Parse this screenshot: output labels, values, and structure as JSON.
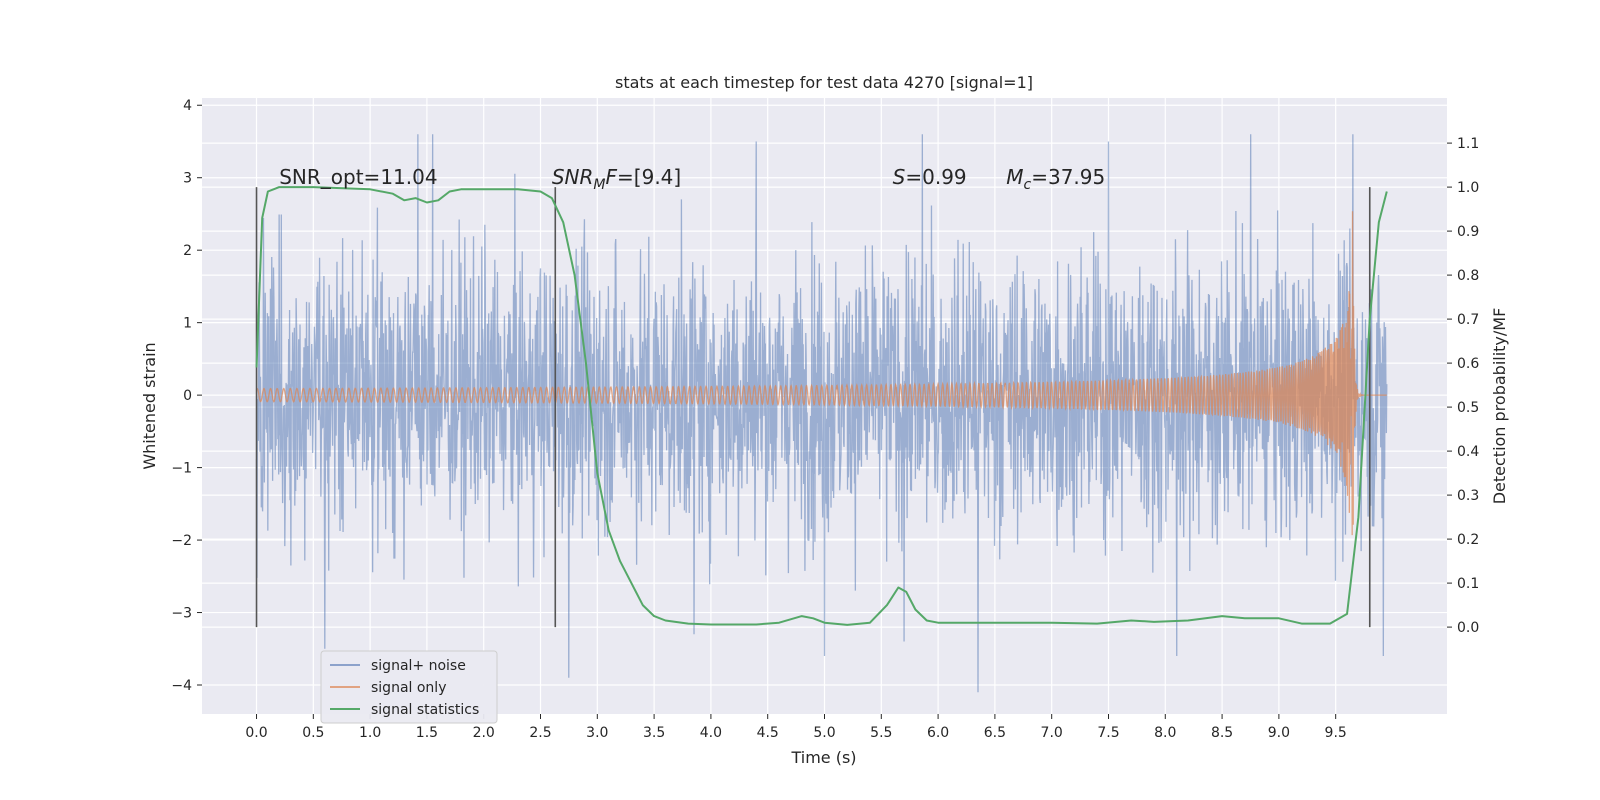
{
  "chart_data": {
    "type": "line",
    "title": "stats at each timestep for test data 4270 [signal=1]",
    "xlabel": "Time (s)",
    "ylabel": "Whitened strain",
    "y2label": "Detection probability/MF",
    "xlim": [
      -0.48,
      10.48
    ],
    "ylim": [
      -4.4,
      4.1
    ],
    "y2lim": [
      -0.1975,
      1.2025
    ],
    "xticks": [
      0.0,
      0.5,
      1.0,
      1.5,
      2.0,
      2.5,
      3.0,
      3.5,
      4.0,
      4.5,
      5.0,
      5.5,
      6.0,
      6.5,
      7.0,
      7.5,
      8.0,
      8.5,
      9.0,
      9.5
    ],
    "xtick_labels": [
      "0.0",
      "0.5",
      "1.0",
      "1.5",
      "2.0",
      "2.5",
      "3.0",
      "3.5",
      "4.0",
      "4.5",
      "5.0",
      "5.5",
      "6.0",
      "6.5",
      "7.0",
      "7.5",
      "8.0",
      "8.5",
      "9.0",
      "9.5"
    ],
    "yticks": [
      -4,
      -3,
      -2,
      -1,
      0,
      1,
      2,
      3,
      4
    ],
    "ytick_labels": [
      "−4",
      "−3",
      "−2",
      "−1",
      "0",
      "1",
      "2",
      "3",
      "4"
    ],
    "y2ticks": [
      0.0,
      0.1,
      0.2,
      0.3,
      0.4,
      0.5,
      0.6,
      0.7,
      0.8,
      0.9,
      1.0,
      1.1
    ],
    "y2tick_labels": [
      "0.0",
      "0.1",
      "0.2",
      "0.3",
      "0.4",
      "0.5",
      "0.6",
      "0.7",
      "0.8",
      "0.9",
      "1.0",
      "1.1"
    ],
    "grid": true,
    "legend_position": "lower-left",
    "annotations": [
      {
        "x": 0.2,
        "html": "SNR_opt=11.04"
      },
      {
        "x": 2.6,
        "html": "<tspan font-style='italic'>SNR</tspan><tspan font-style='italic' font-size='14' dy='5'>M</tspan><tspan font-style='italic' dy='-5'>F</tspan>=[9.4]"
      },
      {
        "x": 5.6,
        "html": "<tspan font-style='italic'>S</tspan>=0.99"
      },
      {
        "x": 6.6,
        "html": "<tspan font-style='italic'>M</tspan><tspan font-style='italic' font-size='14' dy='5'>c</tspan><tspan dy='-5'>=37.95</tspan>"
      }
    ],
    "vlines": [
      {
        "x": 0.0,
        "y2range": [
          0.0,
          1.0
        ]
      },
      {
        "x": 2.63,
        "y2range": [
          0.0,
          1.0
        ]
      },
      {
        "x": 9.8,
        "y2range": [
          0.0,
          1.0
        ]
      }
    ],
    "series": [
      {
        "name": "signal+ noise",
        "color": "#4c72b0",
        "opacity": 0.5,
        "axis": "left",
        "kind": "noise",
        "x_range": [
          0.0,
          9.95
        ],
        "typical_band": [
          -1.8,
          1.8
        ],
        "extremes": [
          {
            "x": 0.6,
            "y": -3.5
          },
          {
            "x": 1.42,
            "y": 3.7
          },
          {
            "x": 1.55,
            "y": 3.6
          },
          {
            "x": 2.75,
            "y": -3.9
          },
          {
            "x": 3.85,
            "y": -3.3
          },
          {
            "x": 4.4,
            "y": 3.5
          },
          {
            "x": 5.0,
            "y": -3.6
          },
          {
            "x": 5.7,
            "y": -3.4
          },
          {
            "x": 5.86,
            "y": 3.7
          },
          {
            "x": 6.35,
            "y": -4.1
          },
          {
            "x": 7.5,
            "y": 3.5
          },
          {
            "x": 8.75,
            "y": 3.6
          },
          {
            "x": 9.65,
            "y": 3.75
          },
          {
            "x": 8.1,
            "y": -3.6
          },
          {
            "x": 9.92,
            "y": -3.6
          }
        ]
      },
      {
        "name": "signal only",
        "color": "#dd8452",
        "opacity": 0.7,
        "axis": "left",
        "kind": "chirp",
        "x_range": [
          0.0,
          9.95
        ],
        "merger_time": 9.65,
        "peak_amplitude": 2.7
      },
      {
        "name": "signal statistics",
        "color": "#55a868",
        "axis": "right",
        "kind": "line",
        "x": [
          0.0,
          0.05,
          0.1,
          0.15,
          0.2,
          0.3,
          0.5,
          1.0,
          1.2,
          1.3,
          1.4,
          1.5,
          1.6,
          1.7,
          1.8,
          2.0,
          2.3,
          2.5,
          2.6,
          2.7,
          2.8,
          2.9,
          3.0,
          3.1,
          3.2,
          3.3,
          3.4,
          3.5,
          3.6,
          3.8,
          4.0,
          4.4,
          4.6,
          4.8,
          4.9,
          5.0,
          5.2,
          5.4,
          5.55,
          5.65,
          5.72,
          5.8,
          5.9,
          6.0,
          6.2,
          6.5,
          7.0,
          7.4,
          7.7,
          7.9,
          8.2,
          8.5,
          8.7,
          9.0,
          9.2,
          9.45,
          9.6,
          9.7,
          9.8,
          9.88,
          9.95
        ],
        "y": [
          0.59,
          0.93,
          0.99,
          0.995,
          1.0,
          1.0,
          1.0,
          0.995,
          0.985,
          0.97,
          0.975,
          0.965,
          0.97,
          0.99,
          0.995,
          0.995,
          0.995,
          0.99,
          0.975,
          0.92,
          0.8,
          0.6,
          0.35,
          0.22,
          0.15,
          0.1,
          0.05,
          0.025,
          0.015,
          0.008,
          0.006,
          0.006,
          0.01,
          0.025,
          0.02,
          0.01,
          0.005,
          0.01,
          0.05,
          0.09,
          0.08,
          0.04,
          0.015,
          0.01,
          0.01,
          0.01,
          0.01,
          0.008,
          0.015,
          0.012,
          0.015,
          0.025,
          0.02,
          0.02,
          0.008,
          0.008,
          0.03,
          0.25,
          0.7,
          0.92,
          0.99
        ]
      }
    ]
  }
}
